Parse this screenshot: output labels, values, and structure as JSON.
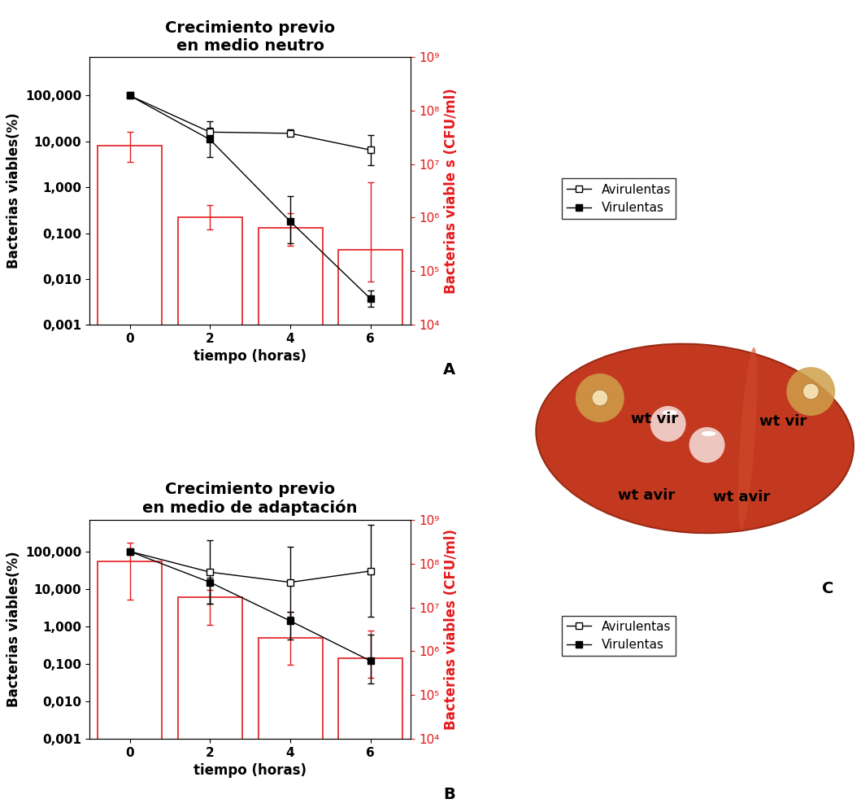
{
  "chart_data": [
    {
      "type": "bar_line",
      "title": "Crecimiento previo\nen medio neutro",
      "annotation": "A",
      "x_label": "tiempo (horas)",
      "y_label": "Bacterias viables(%)",
      "y2_label": "Bacterias viable s (CFU/ml)",
      "x": [
        0,
        2,
        4,
        6
      ],
      "xlim": [
        -1,
        7
      ],
      "xticks": [
        0,
        2,
        4,
        6
      ],
      "log": "y",
      "ylim": [
        0.001,
        700
      ],
      "yticks": [
        {
          "value": 0.001,
          "label": "0,001"
        },
        {
          "value": 0.01,
          "label": "0,010"
        },
        {
          "value": 0.1,
          "label": "0,100"
        },
        {
          "value": 1,
          "label": "1,000"
        },
        {
          "value": 10,
          "label": "10,000"
        },
        {
          "value": 100,
          "label": "100,000"
        }
      ],
      "y2lim": [
        10000,
        1000000000
      ],
      "y2ticks": [
        {
          "value": 10000,
          "label": "10⁴"
        },
        {
          "value": 100000,
          "label": "10⁵"
        },
        {
          "value": 1000000,
          "label": "10⁶"
        },
        {
          "value": 10000000,
          "label": "10⁷"
        },
        {
          "value": 100000000,
          "label": "10⁸"
        },
        {
          "value": 1000000000,
          "label": "10⁹"
        }
      ],
      "legend": "right",
      "series": [
        {
          "type": "bar",
          "axis": "y2",
          "color": "#e41a1c",
          "values": [
            22000000,
            1000000,
            650000,
            250000
          ],
          "error_low": [
            11000000,
            600000,
            300000,
            65000
          ],
          "error_high": [
            40000000,
            1700000,
            1200000,
            4600000
          ]
        },
        {
          "type": "line",
          "name": "Avirulentas",
          "color": "#000000",
          "marker": "square_open",
          "line_style": "solid",
          "values": [
            100,
            16,
            15,
            6.5
          ],
          "error_low": [
            100,
            10,
            13,
            3
          ],
          "error_high": [
            100,
            28,
            18,
            14
          ]
        },
        {
          "type": "line",
          "name": "Virulentas",
          "color": "#000000",
          "marker": "square",
          "line_style": "solid",
          "values": [
            100,
            11,
            0.18,
            0.0037
          ],
          "error_low": [
            100,
            4.5,
            0.06,
            0.0025
          ],
          "error_high": [
            100,
            20,
            0.65,
            0.0055
          ]
        }
      ]
    },
    {
      "type": "bar_line",
      "title": "Crecimiento previo\nen medio de adaptación",
      "annotation": "B",
      "x_label": "tiempo (horas)",
      "y_label": "Bacterias viables(%)",
      "y2_label": "Bacterias viables (CFU/ml)",
      "x": [
        0,
        2,
        4,
        6
      ],
      "xlim": [
        -1,
        7
      ],
      "xticks": [
        0,
        2,
        4,
        6
      ],
      "log": "y",
      "ylim": [
        0.001,
        700
      ],
      "yticks": [
        {
          "value": 0.001,
          "label": "0,001"
        },
        {
          "value": 0.01,
          "label": "0,010"
        },
        {
          "value": 0.1,
          "label": "0,100"
        },
        {
          "value": 1,
          "label": "1,000"
        },
        {
          "value": 10,
          "label": "10,000"
        },
        {
          "value": 100,
          "label": "100,000"
        }
      ],
      "y2lim": [
        10000,
        1000000000
      ],
      "y2ticks": [
        {
          "value": 10000,
          "label": "10⁴"
        },
        {
          "value": 100000,
          "label": "10⁵"
        },
        {
          "value": 1000000,
          "label": "10⁶"
        },
        {
          "value": 10000000,
          "label": "10⁷"
        },
        {
          "value": 100000000,
          "label": "10⁸"
        },
        {
          "value": 1000000000,
          "label": "10⁹"
        }
      ],
      "legend": "right",
      "series": [
        {
          "type": "bar",
          "axis": "y2",
          "color": "#e41a1c",
          "values": [
            110000000,
            17000000,
            2000000,
            700000
          ],
          "error_low": [
            15000000,
            4000000,
            500000,
            250000
          ],
          "error_high": [
            300000000,
            25000000,
            8000000,
            3000000
          ]
        },
        {
          "type": "line",
          "name": "Avirulentas",
          "color": "#000000",
          "marker": "square_open",
          "line_style": "solid",
          "values": [
            100,
            28,
            15,
            30
          ],
          "error_low": [
            100,
            4,
            1.8,
            1.8
          ],
          "error_high": [
            100,
            200,
            130,
            500
          ]
        },
        {
          "type": "line",
          "name": "Virulentas",
          "color": "#000000",
          "marker": "square",
          "line_style": "solid",
          "values": [
            100,
            15,
            1.4,
            0.12
          ],
          "error_low": [
            100,
            4,
            0.45,
            0.03
          ],
          "error_high": [
            100,
            20,
            2.5,
            0.6
          ]
        }
      ]
    }
  ],
  "plate": {
    "label": "C",
    "colonies": [
      {
        "label": "wt vir",
        "type": "virulent"
      },
      {
        "label": "wt vir",
        "type": "virulent"
      },
      {
        "label": "wt avir",
        "type": "avirulent"
      },
      {
        "label": "wt avir",
        "type": "avirulent"
      }
    ]
  }
}
